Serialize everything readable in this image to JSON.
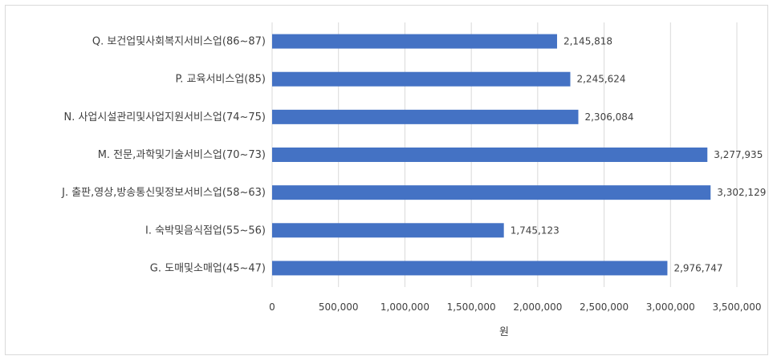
{
  "chart_data": {
    "type": "bar",
    "orientation": "horizontal",
    "categories": [
      "Q. 보건업및사회복지서비스업(86~87)",
      "P. 교육서비스업(85)",
      "N. 사업시설관리및사업지원서비스업(74~75)",
      "M. 전문,과학및기술서비스업(70~73)",
      "J. 출판,영상,방송통신및정보서비스업(58~63)",
      "I. 숙박및음식점업(55~56)",
      "G. 도매및소매업(45~47)"
    ],
    "values": [
      2145818,
      2245624,
      2306084,
      3277935,
      3302129,
      1745123,
      2976747
    ],
    "value_labels": [
      "2,145,818",
      "2,245,624",
      "2,306,084",
      "3,277,935",
      "3,302,129",
      "1,745,123",
      "2,976,747"
    ],
    "xlim": [
      0,
      3500000
    ],
    "x_ticks": [
      0,
      500000,
      1000000,
      1500000,
      2000000,
      2500000,
      3000000,
      3500000
    ],
    "x_tick_labels": [
      "0",
      "500,000",
      "1,000,000",
      "1,500,000",
      "2,000,000",
      "2,500,000",
      "3,000,000",
      "3,500,000"
    ],
    "xlabel": "원",
    "ylabel": "",
    "title": "",
    "grid": "vertical",
    "bar_color": "#4472c4",
    "grid_color": "#d9d9d9"
  }
}
